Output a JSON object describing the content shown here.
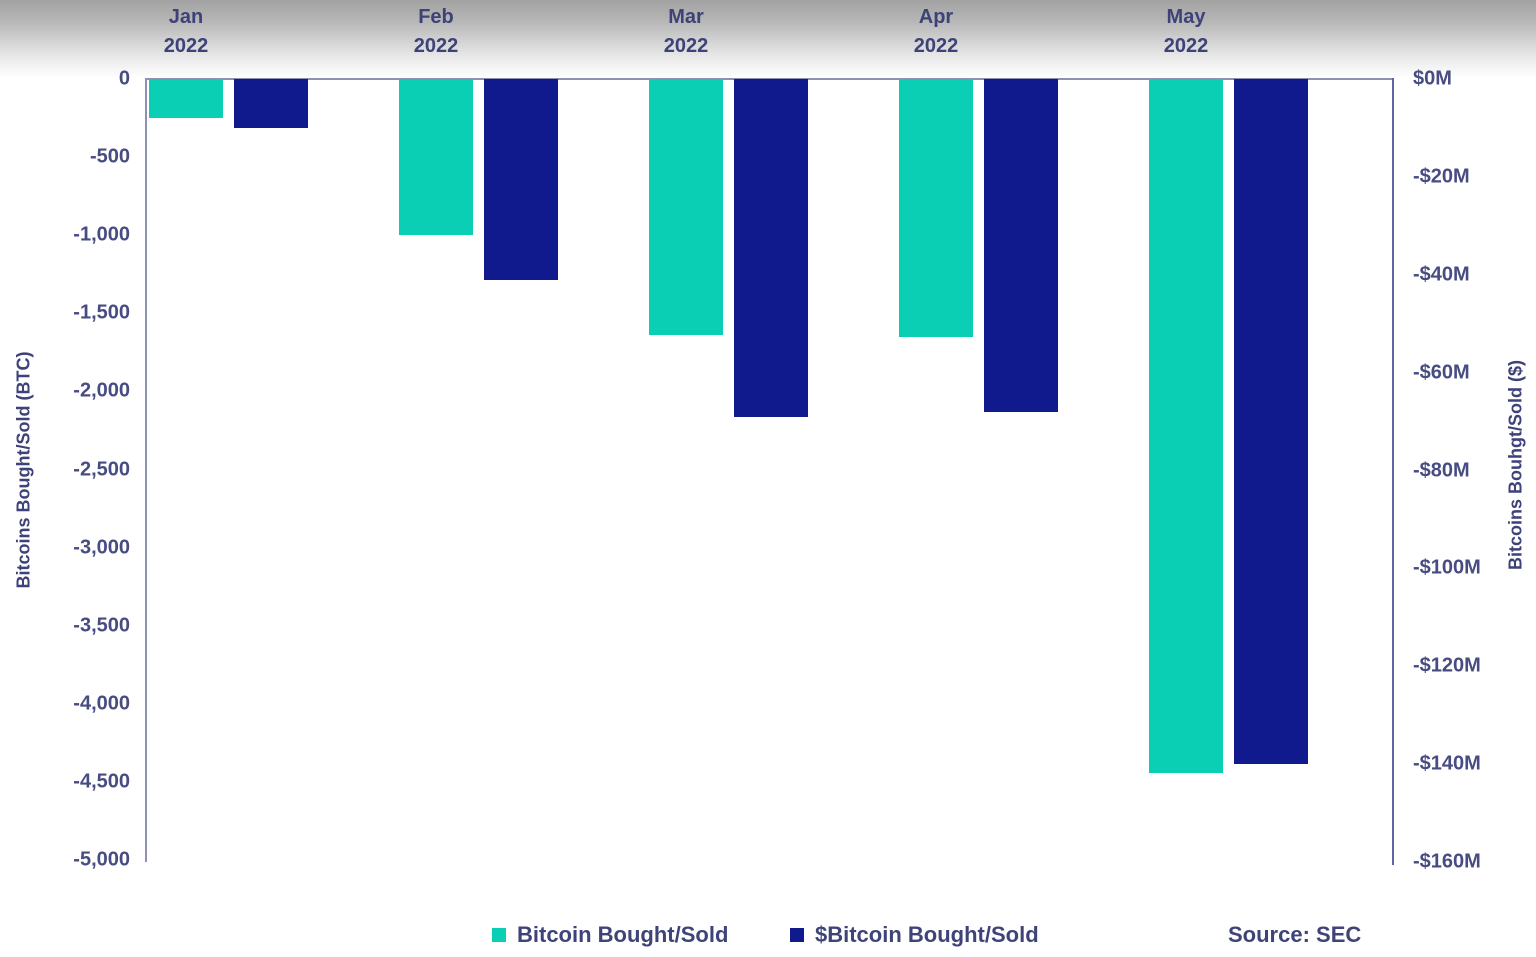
{
  "chart_data": {
    "type": "bar",
    "title": "",
    "categories": [
      "Jan\n2022",
      "Feb\n2022",
      "Mar\n2022",
      "Apr\n2022",
      "May\n2022"
    ],
    "series": [
      {
        "name": "Bitcoin Bought/Sold",
        "axis": "left",
        "color": "#0bcfb4",
        "values": [
          -250,
          -1000,
          -1640,
          -1650,
          -4440
        ]
      },
      {
        "name": "$Bitcoin Bought/Sold",
        "axis": "right",
        "color": "#111a8c",
        "values": [
          -10,
          -41,
          -69,
          -68,
          -140
        ]
      }
    ],
    "left_axis": {
      "label": "Bitcoins Bought/Sold (BTC)",
      "min": -5000,
      "max": 0,
      "ticks": [
        {
          "label": "0",
          "value": 0
        },
        {
          "label": "-500",
          "value": -500
        },
        {
          "label": "-1,000",
          "value": -1000
        },
        {
          "label": "-1,500",
          "value": -1500
        },
        {
          "label": "-2,000",
          "value": -2000
        },
        {
          "label": "-2,500",
          "value": -2500
        },
        {
          "label": "-3,000",
          "value": -3000
        },
        {
          "label": "-3,500",
          "value": -3500
        },
        {
          "label": "-4,000",
          "value": -4000
        },
        {
          "label": "-4,500",
          "value": -4500
        },
        {
          "label": "-5,000",
          "value": -5000
        }
      ]
    },
    "right_axis": {
      "label": "Bitcoins Bouhgt/Sold ($)",
      "min": -160,
      "max": 0,
      "unit": "M USD",
      "ticks": [
        {
          "label": "$0M",
          "value": 0
        },
        {
          "label": "-$20M",
          "value": -20
        },
        {
          "label": "-$40M",
          "value": -40
        },
        {
          "label": "-$60M",
          "value": -60
        },
        {
          "label": "-$80M",
          "value": -80
        },
        {
          "label": "-$100M",
          "value": -100
        },
        {
          "label": "-$120M",
          "value": -120
        },
        {
          "label": "-$140M",
          "value": -140
        },
        {
          "label": "-$160M",
          "value": -160
        }
      ]
    },
    "legend": [
      {
        "label": "Bitcoin Bought/Sold",
        "color": "#0bcfb4"
      },
      {
        "label": "$Bitcoin Bought/Sold",
        "color": "#111a8c"
      }
    ],
    "source": "Source: SEC",
    "grid": false,
    "legend_position": "bottom"
  }
}
